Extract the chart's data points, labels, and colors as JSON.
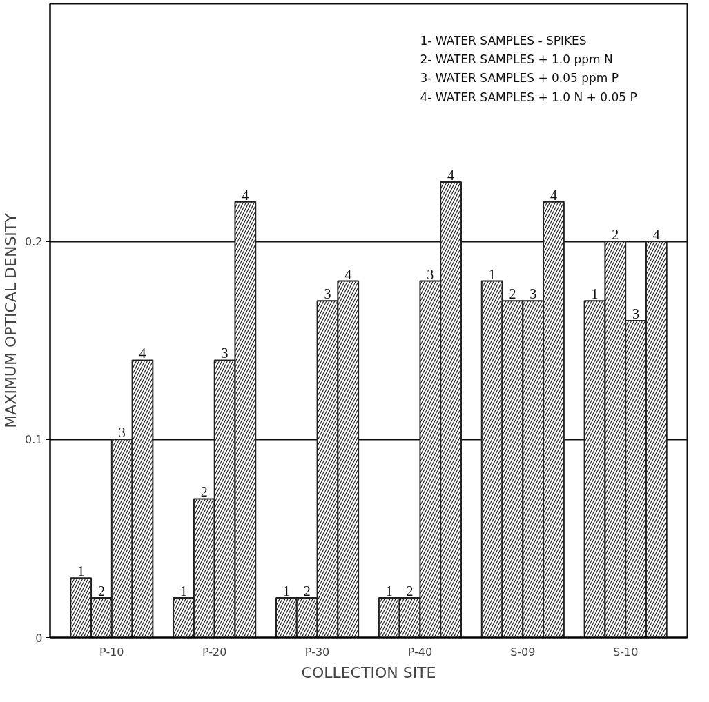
{
  "chart_data": {
    "type": "bar",
    "xlabel": "COLLECTION SITE",
    "ylabel": "MAXIMUM OPTICAL DENSITY",
    "categories": [
      "P-10",
      "P-20",
      "P-30",
      "P-40",
      "S-09",
      "S-10"
    ],
    "series": [
      {
        "name": "1",
        "color": "#222222",
        "values": [
          0.03,
          0.02,
          0.02,
          0.02,
          0.18,
          0.17
        ]
      },
      {
        "name": "2",
        "color": "#222222",
        "values": [
          0.02,
          0.07,
          0.02,
          0.02,
          0.17,
          0.2
        ]
      },
      {
        "name": "3",
        "color": "#222222",
        "values": [
          0.1,
          0.14,
          0.17,
          0.18,
          0.17,
          0.16
        ]
      },
      {
        "name": "4",
        "color": "#222222",
        "values": [
          0.14,
          0.22,
          0.18,
          0.23,
          0.22,
          0.2
        ]
      }
    ],
    "annotations": [
      "1- WATER SAMPLES - SPIKES",
      "2- WATER SAMPLES + 1.0 ppm N",
      "3- WATER SAMPLES + 0.05 ppm P",
      "4- WATER SAMPLES + 1.0 N + 0.05 P"
    ],
    "ylim": [
      0,
      0.32
    ],
    "yticks": [
      0,
      0.1,
      0.2
    ],
    "grid": "y"
  }
}
